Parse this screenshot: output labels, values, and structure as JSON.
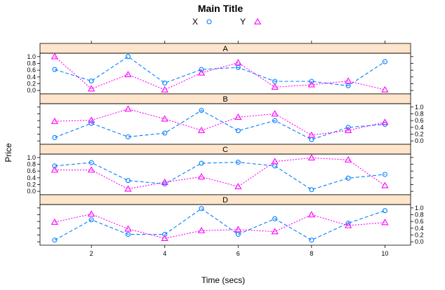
{
  "chart_data": {
    "type": "line",
    "title": "Main Title",
    "xlabel": "Time (secs)",
    "ylabel": "Price",
    "xlim": [
      0.6,
      10.7
    ],
    "ylim": [
      -0.1,
      1.1
    ],
    "x": [
      1,
      2,
      3,
      4,
      5,
      6,
      7,
      8,
      9,
      10
    ],
    "x_ticks": [
      "2",
      "4",
      "6",
      "8",
      "10"
    ],
    "y_ticks": [
      "0.0",
      "0.2",
      "0.4",
      "0.6",
      "0.8",
      "1.0"
    ],
    "legend": {
      "placement": "top",
      "items": [
        {
          "name": "X",
          "color": "#0080ff",
          "marker": "circle"
        },
        {
          "name": "Y",
          "color": "#ff00ff",
          "marker": "triangle"
        }
      ]
    },
    "panels": [
      {
        "name": "A",
        "y_axis_side": "left",
        "series": [
          {
            "name": "X",
            "values": [
              0.62,
              0.28,
              1.0,
              0.22,
              0.62,
              0.68,
              0.27,
              0.27,
              0.14,
              0.85
            ]
          },
          {
            "name": "Y",
            "values": [
              1.0,
              0.05,
              0.47,
              0.02,
              0.52,
              0.82,
              0.1,
              0.17,
              0.28,
              0.02
            ]
          }
        ]
      },
      {
        "name": "B",
        "y_axis_side": "right",
        "series": [
          {
            "name": "X",
            "values": [
              0.1,
              0.52,
              0.12,
              0.23,
              0.9,
              0.3,
              0.6,
              0.04,
              0.4,
              0.49
            ]
          },
          {
            "name": "Y",
            "values": [
              0.58,
              0.61,
              0.94,
              0.65,
              0.31,
              0.7,
              0.8,
              0.17,
              0.31,
              0.55
            ]
          }
        ]
      },
      {
        "name": "C",
        "y_axis_side": "left",
        "series": [
          {
            "name": "X",
            "values": [
              0.75,
              0.85,
              0.32,
              0.22,
              0.83,
              0.86,
              0.75,
              0.05,
              0.39,
              0.5
            ]
          },
          {
            "name": "Y",
            "values": [
              0.63,
              0.63,
              0.07,
              0.27,
              0.43,
              0.14,
              0.88,
              0.99,
              0.93,
              0.17
            ]
          }
        ]
      },
      {
        "name": "D",
        "y_axis_side": "right",
        "series": [
          {
            "name": "X",
            "values": [
              0.05,
              0.65,
              0.22,
              0.22,
              0.98,
              0.22,
              0.68,
              0.05,
              0.55,
              0.92
            ]
          },
          {
            "name": "Y",
            "values": [
              0.58,
              0.82,
              0.38,
              0.1,
              0.33,
              0.36,
              0.3,
              0.8,
              0.48,
              0.57
            ]
          }
        ]
      }
    ]
  }
}
